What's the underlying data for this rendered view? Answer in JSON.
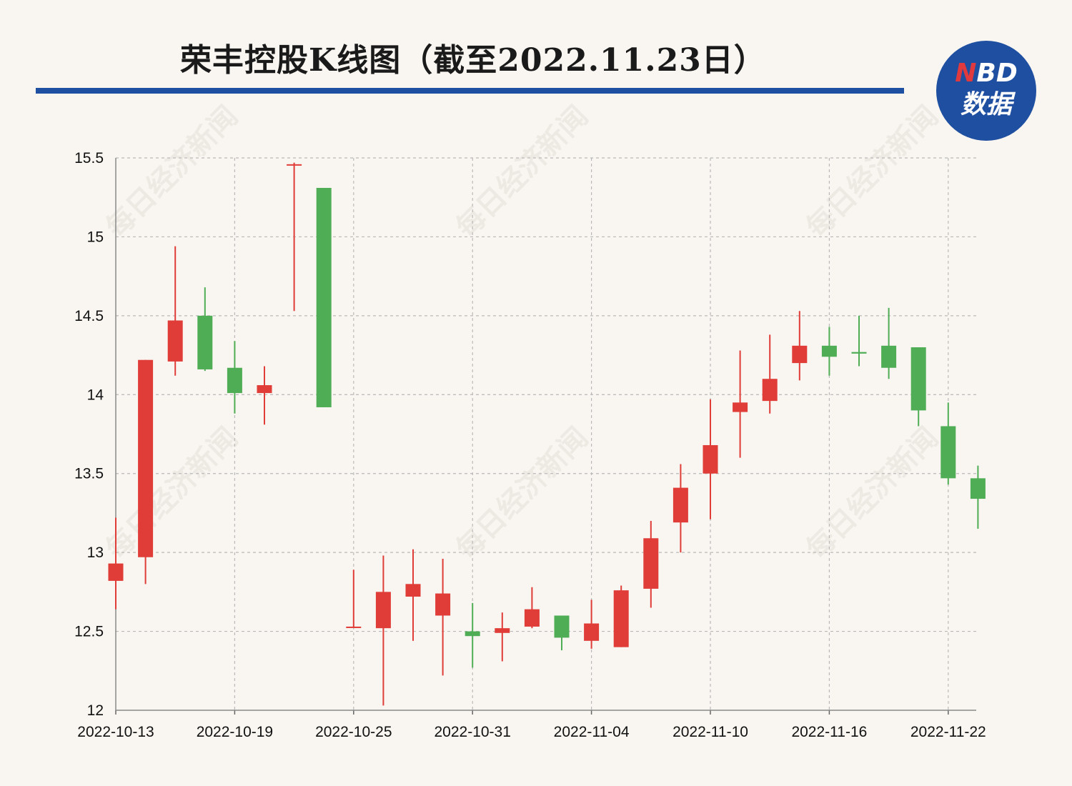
{
  "title": "荣丰控股K线图（截至2022.11.23日）",
  "logo": {
    "line1_n": "N",
    "line1_rest": "BD",
    "line2": "数据"
  },
  "watermark": "每日经济新闻",
  "colors": {
    "up": "#e03c38",
    "down": "#4fad55",
    "accent": "#1f4fa0",
    "grid": "#b9b9b9",
    "background": "#f9f6f1"
  },
  "chart_data": {
    "type": "candlestick",
    "title": "荣丰控股K线图（截至2022.11.23日）",
    "xlabel": "",
    "ylabel": "",
    "ylim": [
      12,
      15.5
    ],
    "yticks": [
      "12",
      "12.5",
      "13",
      "13.5",
      "14",
      "14.5",
      "15",
      "15.5"
    ],
    "xticks": [
      "2022-10-13",
      "2022-10-19",
      "2022-10-25",
      "2022-10-31",
      "2022-11-04",
      "2022-11-10",
      "2022-11-16",
      "2022-11-22"
    ],
    "grid": true,
    "legend": "none",
    "series": [
      {
        "date": "2022-10-13",
        "open": 12.82,
        "close": 12.93,
        "high": 13.22,
        "low": 12.64
      },
      {
        "date": "2022-10-14",
        "open": 12.97,
        "close": 14.22,
        "high": 14.22,
        "low": 12.8
      },
      {
        "date": "2022-10-17",
        "open": 14.21,
        "close": 14.47,
        "high": 14.94,
        "low": 14.12
      },
      {
        "date": "2022-10-18",
        "open": 14.5,
        "close": 14.16,
        "high": 14.68,
        "low": 14.15
      },
      {
        "date": "2022-10-19",
        "open": 14.17,
        "close": 14.01,
        "high": 14.34,
        "low": 13.88
      },
      {
        "date": "2022-10-20",
        "open": 14.01,
        "close": 14.06,
        "high": 14.18,
        "low": 13.81
      },
      {
        "date": "2022-10-21",
        "open": 15.46,
        "close": 15.46,
        "high": 15.47,
        "low": 14.53
      },
      {
        "date": "2022-10-24",
        "open": 15.31,
        "close": 13.92,
        "high": 15.31,
        "low": 13.92
      },
      {
        "date": "2022-10-25",
        "open": 12.53,
        "close": 12.53,
        "high": 12.89,
        "low": 12.53
      },
      {
        "date": "2022-10-26",
        "open": 12.52,
        "close": 12.75,
        "high": 12.98,
        "low": 12.03
      },
      {
        "date": "2022-10-27",
        "open": 12.72,
        "close": 12.8,
        "high": 13.02,
        "low": 12.44
      },
      {
        "date": "2022-10-28",
        "open": 12.6,
        "close": 12.74,
        "high": 12.96,
        "low": 12.22
      },
      {
        "date": "2022-10-31",
        "open": 12.5,
        "close": 12.47,
        "high": 12.68,
        "low": 12.27
      },
      {
        "date": "2022-11-01",
        "open": 12.49,
        "close": 12.52,
        "high": 12.62,
        "low": 12.31
      },
      {
        "date": "2022-11-02",
        "open": 12.53,
        "close": 12.64,
        "high": 12.78,
        "low": 12.52
      },
      {
        "date": "2022-11-03",
        "open": 12.6,
        "close": 12.46,
        "high": 12.6,
        "low": 12.38
      },
      {
        "date": "2022-11-04",
        "open": 12.44,
        "close": 12.55,
        "high": 12.7,
        "low": 12.39
      },
      {
        "date": "2022-11-07",
        "open": 12.4,
        "close": 12.76,
        "high": 12.79,
        "low": 12.4
      },
      {
        "date": "2022-11-08",
        "open": 12.77,
        "close": 13.09,
        "high": 13.2,
        "low": 12.65
      },
      {
        "date": "2022-11-09",
        "open": 13.19,
        "close": 13.41,
        "high": 13.56,
        "low": 13.0
      },
      {
        "date": "2022-11-10",
        "open": 13.5,
        "close": 13.68,
        "high": 13.97,
        "low": 13.21
      },
      {
        "date": "2022-11-11",
        "open": 13.89,
        "close": 13.95,
        "high": 14.28,
        "low": 13.6
      },
      {
        "date": "2022-11-14",
        "open": 13.96,
        "close": 14.1,
        "high": 14.38,
        "low": 13.88
      },
      {
        "date": "2022-11-15",
        "open": 14.2,
        "close": 14.31,
        "high": 14.53,
        "low": 14.09
      },
      {
        "date": "2022-11-16",
        "open": 14.31,
        "close": 14.24,
        "high": 14.43,
        "low": 14.12
      },
      {
        "date": "2022-11-17",
        "open": 14.27,
        "close": 14.26,
        "high": 14.5,
        "low": 14.18
      },
      {
        "date": "2022-11-18",
        "open": 14.31,
        "close": 14.17,
        "high": 14.55,
        "low": 14.1
      },
      {
        "date": "2022-11-21",
        "open": 14.3,
        "close": 13.9,
        "high": 14.3,
        "low": 13.8
      },
      {
        "date": "2022-11-22",
        "open": 13.8,
        "close": 13.47,
        "high": 13.95,
        "low": 13.43
      },
      {
        "date": "2022-11-23",
        "open": 13.47,
        "close": 13.34,
        "high": 13.55,
        "low": 13.15
      }
    ]
  }
}
